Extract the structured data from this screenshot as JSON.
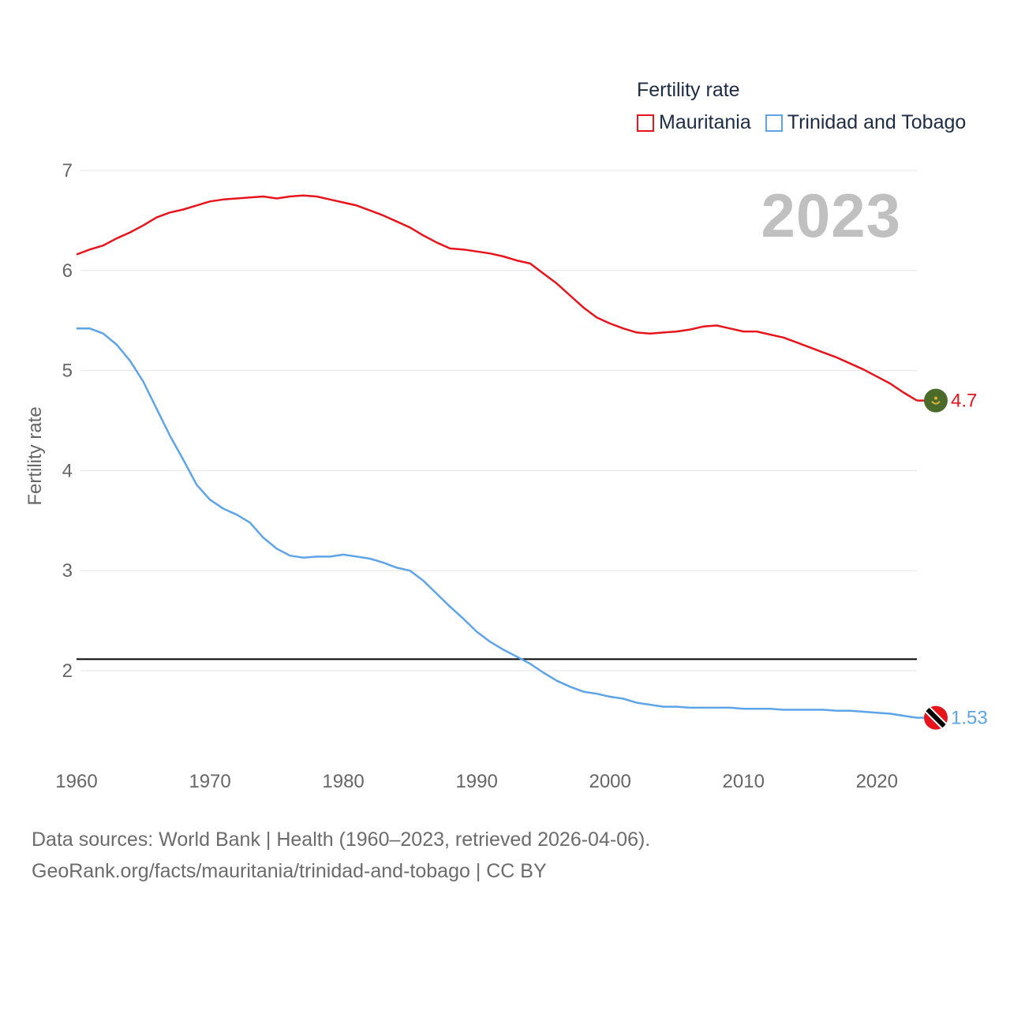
{
  "legend": {
    "title": "Fertility rate",
    "items": [
      {
        "label": "Mauritania",
        "color": "#e8141c"
      },
      {
        "label": "Trinidad and Tobago",
        "color": "#5ea4e8"
      }
    ]
  },
  "year_label": "2023",
  "footer": {
    "line1": "Data sources: World Bank | Health (1960–2023, retrieved 2026-04-06).",
    "line2": "GeoRank.org/facts/mauritania/trinidad-and-tobago | CC BY"
  },
  "chart_data": {
    "type": "line",
    "title": "Fertility rate",
    "xlabel": "",
    "ylabel": "Fertility rate",
    "xlim": [
      1960,
      2023
    ],
    "ylim": [
      1.15,
      7.2
    ],
    "x_ticks": [
      1960,
      1970,
      1980,
      1990,
      2000,
      2010,
      2020
    ],
    "y_ticks": [
      2,
      3,
      4,
      5,
      6,
      7
    ],
    "reference_line": {
      "y": 2.1,
      "color": "#000000"
    },
    "x": [
      1960,
      1961,
      1962,
      1963,
      1964,
      1965,
      1966,
      1967,
      1968,
      1969,
      1970,
      1971,
      1972,
      1973,
      1974,
      1975,
      1976,
      1977,
      1978,
      1979,
      1980,
      1981,
      1982,
      1983,
      1984,
      1985,
      1986,
      1987,
      1988,
      1989,
      1990,
      1991,
      1992,
      1993,
      1994,
      1995,
      1996,
      1997,
      1998,
      1999,
      2000,
      2001,
      2002,
      2003,
      2004,
      2005,
      2006,
      2007,
      2008,
      2009,
      2010,
      2011,
      2012,
      2013,
      2014,
      2015,
      2016,
      2017,
      2018,
      2019,
      2020,
      2021,
      2022,
      2023
    ],
    "series": [
      {
        "name": "Mauritania",
        "color": "#e8141c",
        "end_label": "4.7",
        "values": [
          6.16,
          6.21,
          6.25,
          6.32,
          6.38,
          6.45,
          6.53,
          6.58,
          6.61,
          6.65,
          6.69,
          6.71,
          6.72,
          6.73,
          6.74,
          6.72,
          6.74,
          6.75,
          6.74,
          6.71,
          6.68,
          6.65,
          6.6,
          6.55,
          6.49,
          6.43,
          6.35,
          6.28,
          6.22,
          6.21,
          6.19,
          6.17,
          6.14,
          6.1,
          6.07,
          5.97,
          5.87,
          5.75,
          5.63,
          5.53,
          5.47,
          5.42,
          5.38,
          5.37,
          5.38,
          5.39,
          5.41,
          5.44,
          5.45,
          5.42,
          5.39,
          5.39,
          5.36,
          5.33,
          5.28,
          5.23,
          5.18,
          5.13,
          5.07,
          5.01,
          4.94,
          4.87,
          4.78,
          4.7
        ]
      },
      {
        "name": "Trinidad and Tobago",
        "color": "#5ea4e8",
        "end_label": "1.53",
        "values": [
          5.42,
          5.42,
          5.37,
          5.26,
          5.1,
          4.89,
          4.62,
          4.35,
          4.11,
          3.86,
          3.71,
          3.62,
          3.56,
          3.48,
          3.33,
          3.22,
          3.15,
          3.13,
          3.14,
          3.14,
          3.16,
          3.14,
          3.12,
          3.08,
          3.03,
          3.0,
          2.9,
          2.77,
          2.64,
          2.52,
          2.39,
          2.29,
          2.21,
          2.14,
          2.07,
          1.98,
          1.9,
          1.84,
          1.79,
          1.77,
          1.74,
          1.72,
          1.68,
          1.66,
          1.64,
          1.64,
          1.63,
          1.63,
          1.63,
          1.63,
          1.62,
          1.62,
          1.62,
          1.61,
          1.61,
          1.61,
          1.61,
          1.6,
          1.6,
          1.59,
          1.58,
          1.57,
          1.55,
          1.53
        ]
      }
    ]
  }
}
